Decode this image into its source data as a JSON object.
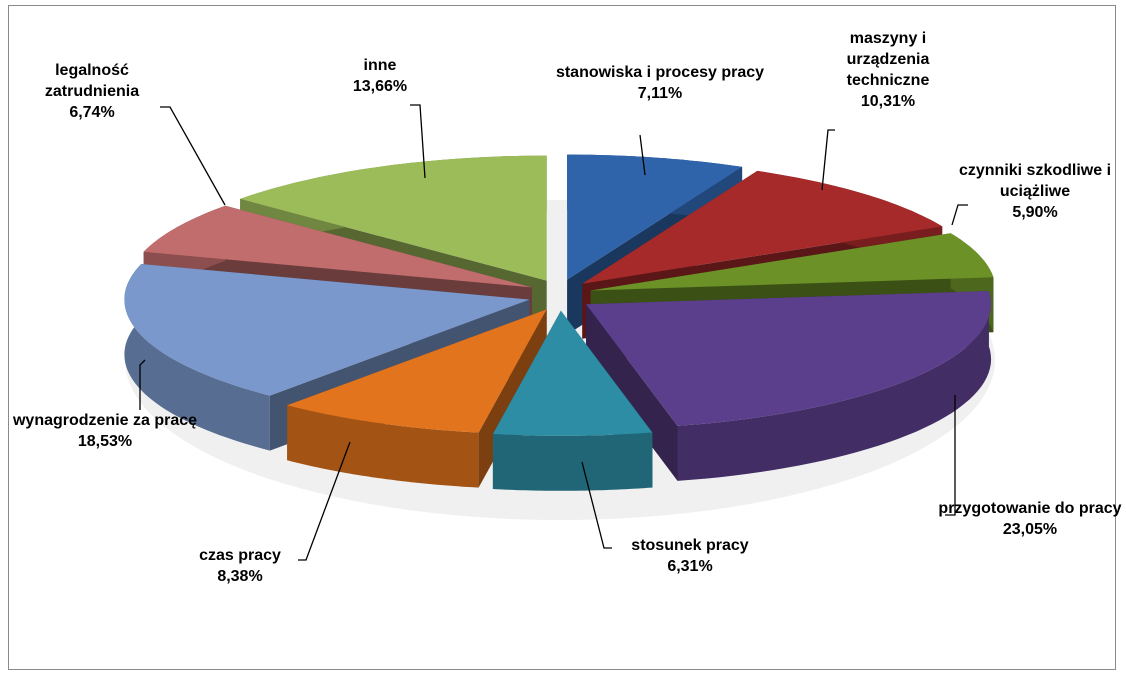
{
  "chart_data": {
    "type": "pie",
    "categories": [
      "stanowiska i procesy pracy",
      "maszyny i urządzenia techniczne",
      "czynniki szkodliwe i uciążliwe",
      "przygotowanie do pracy",
      "stosunek pracy",
      "czas pracy",
      "wynagrodzenie za pracę",
      "legalność zatrudnienia",
      "inne"
    ],
    "values": [
      7.11,
      10.31,
      5.9,
      23.05,
      6.31,
      8.38,
      18.53,
      6.74,
      13.66
    ],
    "value_labels": [
      "7,11%",
      "10,31%",
      "5,90%",
      "23,05%",
      "6,31%",
      "8,38%",
      "18,53%",
      "6,74%",
      "13,66%"
    ],
    "colors": [
      "#2f64ab",
      "#a62a2a",
      "#6b9127",
      "#5c3f8c",
      "#2d8da5",
      "#e2741d",
      "#7a98cb",
      "#c26d6d",
      "#9cbc5a"
    ]
  }
}
